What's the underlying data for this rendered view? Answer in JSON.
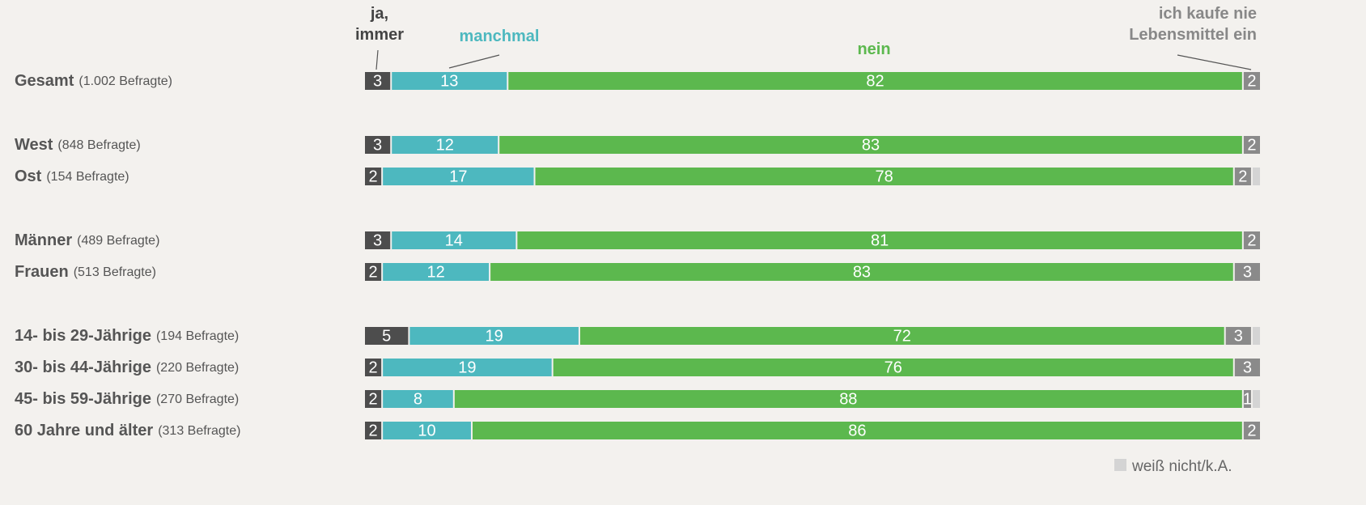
{
  "chart_data": {
    "type": "stacked-bar-horizontal",
    "categories": [
      "Gesamt",
      "West",
      "Ost",
      "Männer",
      "Frauen",
      "14- bis 29-Jährige",
      "30- bis 44-Jährige",
      "45- bis 59-Jährige",
      "60 Jahre und älter"
    ],
    "respondents": [
      "(1.002 Befragte)",
      "(848 Befragte)",
      "(154 Befragte)",
      "(489 Befragte)",
      "(513 Befragte)",
      "(194 Befragte)",
      "(220 Befragte)",
      "(270 Befragte)",
      "(313 Befragte)"
    ],
    "xlim": [
      0,
      100
    ],
    "series": [
      {
        "name": "ja, immer",
        "color": "#4d4d4d",
        "values": [
          3,
          3,
          2,
          3,
          2,
          5,
          2,
          2,
          2
        ]
      },
      {
        "name": "manchmal",
        "color": "#4db8bf",
        "values": [
          13,
          12,
          17,
          14,
          12,
          19,
          19,
          8,
          10
        ]
      },
      {
        "name": "nein",
        "color": "#5cb84e",
        "values": [
          82,
          83,
          78,
          81,
          83,
          72,
          76,
          88,
          86
        ]
      },
      {
        "name": "ich kaufe nie Lebensmittel ein",
        "color": "#8a8a8a",
        "values": [
          2,
          2,
          2,
          2,
          3,
          3,
          3,
          1,
          2
        ]
      },
      {
        "name": "weiß nicht/k.A.",
        "color": "#d4d4d4",
        "values": [
          0,
          0,
          1,
          0,
          0,
          1,
          0,
          1,
          0
        ],
        "labels": false,
        "legend": "bottom-right"
      }
    ]
  }
}
